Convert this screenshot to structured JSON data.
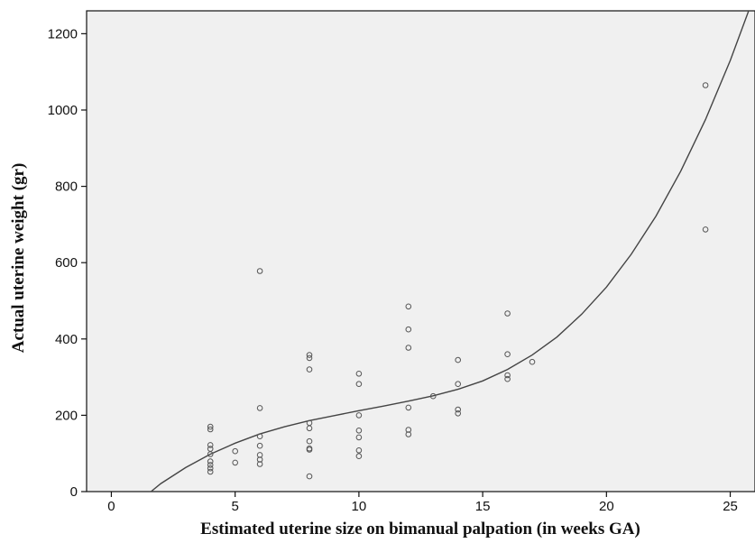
{
  "chart_data": {
    "type": "scatter",
    "title": "",
    "xlabel": "Estimated uterine size on bimanual palpation (in weeks GA)",
    "ylabel": "Actual uterine weight (gr)",
    "xlim": [
      -1,
      26
    ],
    "ylim": [
      0,
      1260
    ],
    "xticks": [
      0,
      5,
      10,
      15,
      20,
      25
    ],
    "yticks": [
      0,
      200,
      400,
      600,
      800,
      1000,
      1200
    ],
    "grid": false,
    "colors": {
      "background": "#f0f0f0",
      "point": "#555555",
      "line": "#444444"
    },
    "series": [
      {
        "type": "scatter",
        "points": [
          [
            4,
            170
          ],
          [
            4,
            163
          ],
          [
            4,
            122
          ],
          [
            4,
            112
          ],
          [
            4,
            98
          ],
          [
            4,
            79
          ],
          [
            4,
            70
          ],
          [
            4,
            61
          ],
          [
            4,
            52
          ],
          [
            5,
            106
          ],
          [
            5,
            76
          ],
          [
            6,
            578
          ],
          [
            6,
            219
          ],
          [
            6,
            145
          ],
          [
            6,
            120
          ],
          [
            6,
            96
          ],
          [
            6,
            84
          ],
          [
            6,
            72
          ],
          [
            8,
            358
          ],
          [
            8,
            350
          ],
          [
            8,
            320
          ],
          [
            8,
            180
          ],
          [
            8,
            166
          ],
          [
            8,
            132
          ],
          [
            8,
            113
          ],
          [
            8,
            110
          ],
          [
            8,
            40
          ],
          [
            10,
            309
          ],
          [
            10,
            282
          ],
          [
            10,
            200
          ],
          [
            10,
            160
          ],
          [
            10,
            142
          ],
          [
            10,
            108
          ],
          [
            10,
            93
          ],
          [
            12,
            485
          ],
          [
            12,
            425
          ],
          [
            12,
            377
          ],
          [
            12,
            220
          ],
          [
            12,
            162
          ],
          [
            12,
            150
          ],
          [
            13,
            250
          ],
          [
            14,
            345
          ],
          [
            14,
            282
          ],
          [
            14,
            215
          ],
          [
            14,
            205
          ],
          [
            16,
            467
          ],
          [
            16,
            360
          ],
          [
            16,
            305
          ],
          [
            16,
            295
          ],
          [
            17,
            340
          ],
          [
            24,
            1065
          ],
          [
            24,
            687
          ]
        ]
      },
      {
        "type": "line",
        "name": "",
        "x": [
          1.6,
          2,
          3,
          4,
          5,
          6,
          7,
          8,
          9,
          10,
          11,
          12,
          13,
          14,
          15,
          16,
          17,
          18,
          19,
          20,
          21,
          22,
          23,
          24,
          25,
          26
        ],
        "y": [
          0,
          21,
          63,
          98,
          127,
          151,
          170,
          186,
          199,
          212,
          224,
          237,
          251,
          268,
          290,
          320,
          358,
          405,
          465,
          536,
          622,
          722,
          840,
          975,
          1130,
          1305
        ]
      }
    ]
  }
}
